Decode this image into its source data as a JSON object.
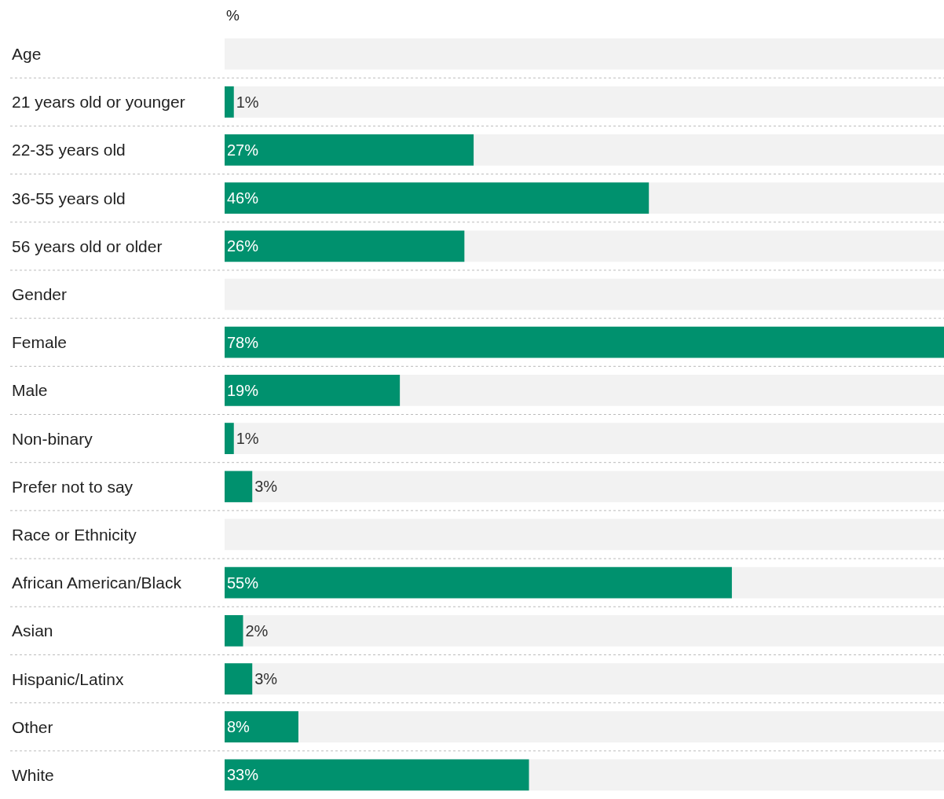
{
  "chart_data": {
    "type": "bar",
    "orientation": "horizontal",
    "xlabel": "%",
    "categories": [
      "Age",
      "21 years old or younger",
      "22-35 years old",
      "36-55 years old",
      "56 years old or older",
      "Gender",
      "Female",
      "Male",
      "Non-binary",
      "Prefer not to say",
      "Race or Ethnicity",
      "African American/Black",
      "Asian",
      "Hispanic/Latinx",
      "Other",
      "White"
    ],
    "values": [
      null,
      1,
      27,
      46,
      26,
      null,
      78,
      19,
      1,
      3,
      null,
      55,
      2,
      3,
      8,
      33
    ],
    "value_labels": [
      null,
      "1%",
      "27%",
      "46%",
      "26%",
      null,
      "78%",
      "19%",
      "1%",
      "3%",
      null,
      "55%",
      "2%",
      "3%",
      "8%",
      "33%"
    ],
    "bands": [
      {
        "axis": "y",
        "from": "Age",
        "to": "Age",
        "color": "#f2f2f2"
      },
      {
        "axis": "y",
        "from": "21 years old or younger",
        "to": "21 years old or younger",
        "color": "#f2f2f2"
      },
      {
        "axis": "y",
        "from": "22-35 years old",
        "to": "22-35 years old",
        "color": "#f2f2f2"
      },
      {
        "axis": "y",
        "from": "36-55 years old",
        "to": "36-55 years old",
        "color": "#f2f2f2"
      },
      {
        "axis": "y",
        "from": "56 years old or older",
        "to": "56 years old or older",
        "color": "#f2f2f2"
      },
      {
        "axis": "y",
        "from": "Gender",
        "to": "Gender",
        "color": "#f2f2f2"
      },
      {
        "axis": "y",
        "from": "Male",
        "to": "Male",
        "color": "#f2f2f2"
      },
      {
        "axis": "y",
        "from": "Non-binary",
        "to": "Non-binary",
        "color": "#f2f2f2"
      },
      {
        "axis": "y",
        "from": "Prefer not to say",
        "to": "Prefer not to say",
        "color": "#f2f2f2"
      },
      {
        "axis": "y",
        "from": "Race or Ethnicity",
        "to": "Race or Ethnicity",
        "color": "#f2f2f2"
      },
      {
        "axis": "y",
        "from": "African American/Black",
        "to": "African American/Black",
        "color": "#f2f2f2"
      },
      {
        "axis": "y",
        "from": "Asian",
        "to": "Asian",
        "color": "#f2f2f2"
      },
      {
        "axis": "y",
        "from": "Hispanic/Latinx",
        "to": "Hispanic/Latinx",
        "color": "#f2f2f2"
      },
      {
        "axis": "y",
        "from": "Other",
        "to": "Other",
        "color": "#f2f2f2"
      },
      {
        "axis": "y",
        "from": "White",
        "to": "White",
        "color": "#f2f2f2"
      }
    ],
    "color": "#00916e",
    "xlim": [
      0,
      78
    ],
    "tick_labels": false,
    "grid": false,
    "legend": false
  }
}
